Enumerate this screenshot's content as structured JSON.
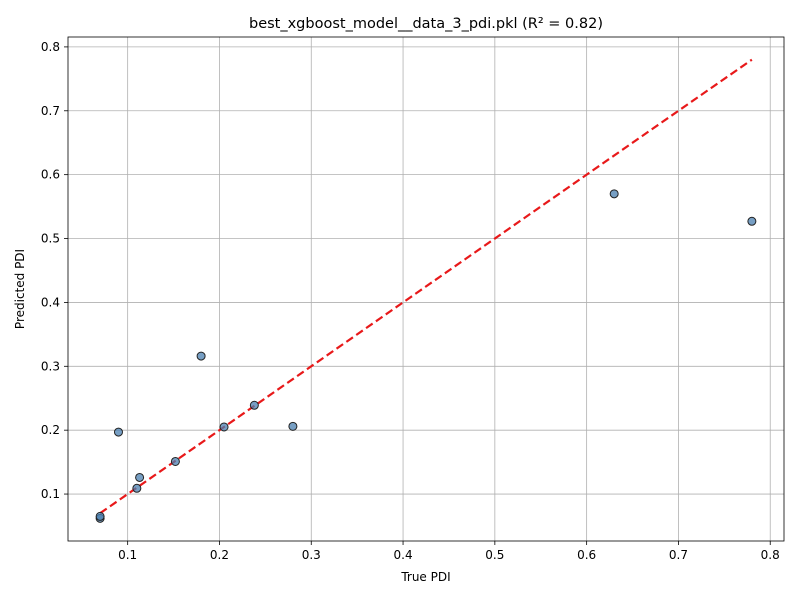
{
  "chart_data": {
    "type": "scatter",
    "title": "best_xgboost_model__data_3_pdi.pkl (R² = 0.82)",
    "xlabel": "True PDI",
    "ylabel": "Predicted PDI",
    "xlim": [
      0.035,
      0.815
    ],
    "ylim": [
      0.0265,
      0.8155
    ],
    "xticks": [
      0.1,
      0.2,
      0.3,
      0.4,
      0.5,
      0.6,
      0.7,
      0.8
    ],
    "xtick_labels": [
      "0.1",
      "0.2",
      "0.3",
      "0.4",
      "0.5",
      "0.6",
      "0.7",
      "0.8"
    ],
    "yticks": [
      0.1,
      0.2,
      0.3,
      0.4,
      0.5,
      0.6,
      0.7,
      0.8
    ],
    "ytick_labels": [
      "0.1",
      "0.2",
      "0.3",
      "0.4",
      "0.5",
      "0.6",
      "0.7",
      "0.8"
    ],
    "grid": true,
    "points": {
      "x": [
        0.07,
        0.07,
        0.09,
        0.11,
        0.113,
        0.152,
        0.18,
        0.205,
        0.238,
        0.28,
        0.63,
        0.78
      ],
      "y": [
        0.062,
        0.065,
        0.197,
        0.109,
        0.126,
        0.151,
        0.316,
        0.205,
        0.239,
        0.206,
        0.57,
        0.527
      ],
      "color": "#4a7fb0"
    },
    "reference_line": {
      "x": [
        0.07,
        0.78
      ],
      "y": [
        0.07,
        0.78
      ],
      "color": "#e8191a",
      "style": "dashed"
    }
  }
}
